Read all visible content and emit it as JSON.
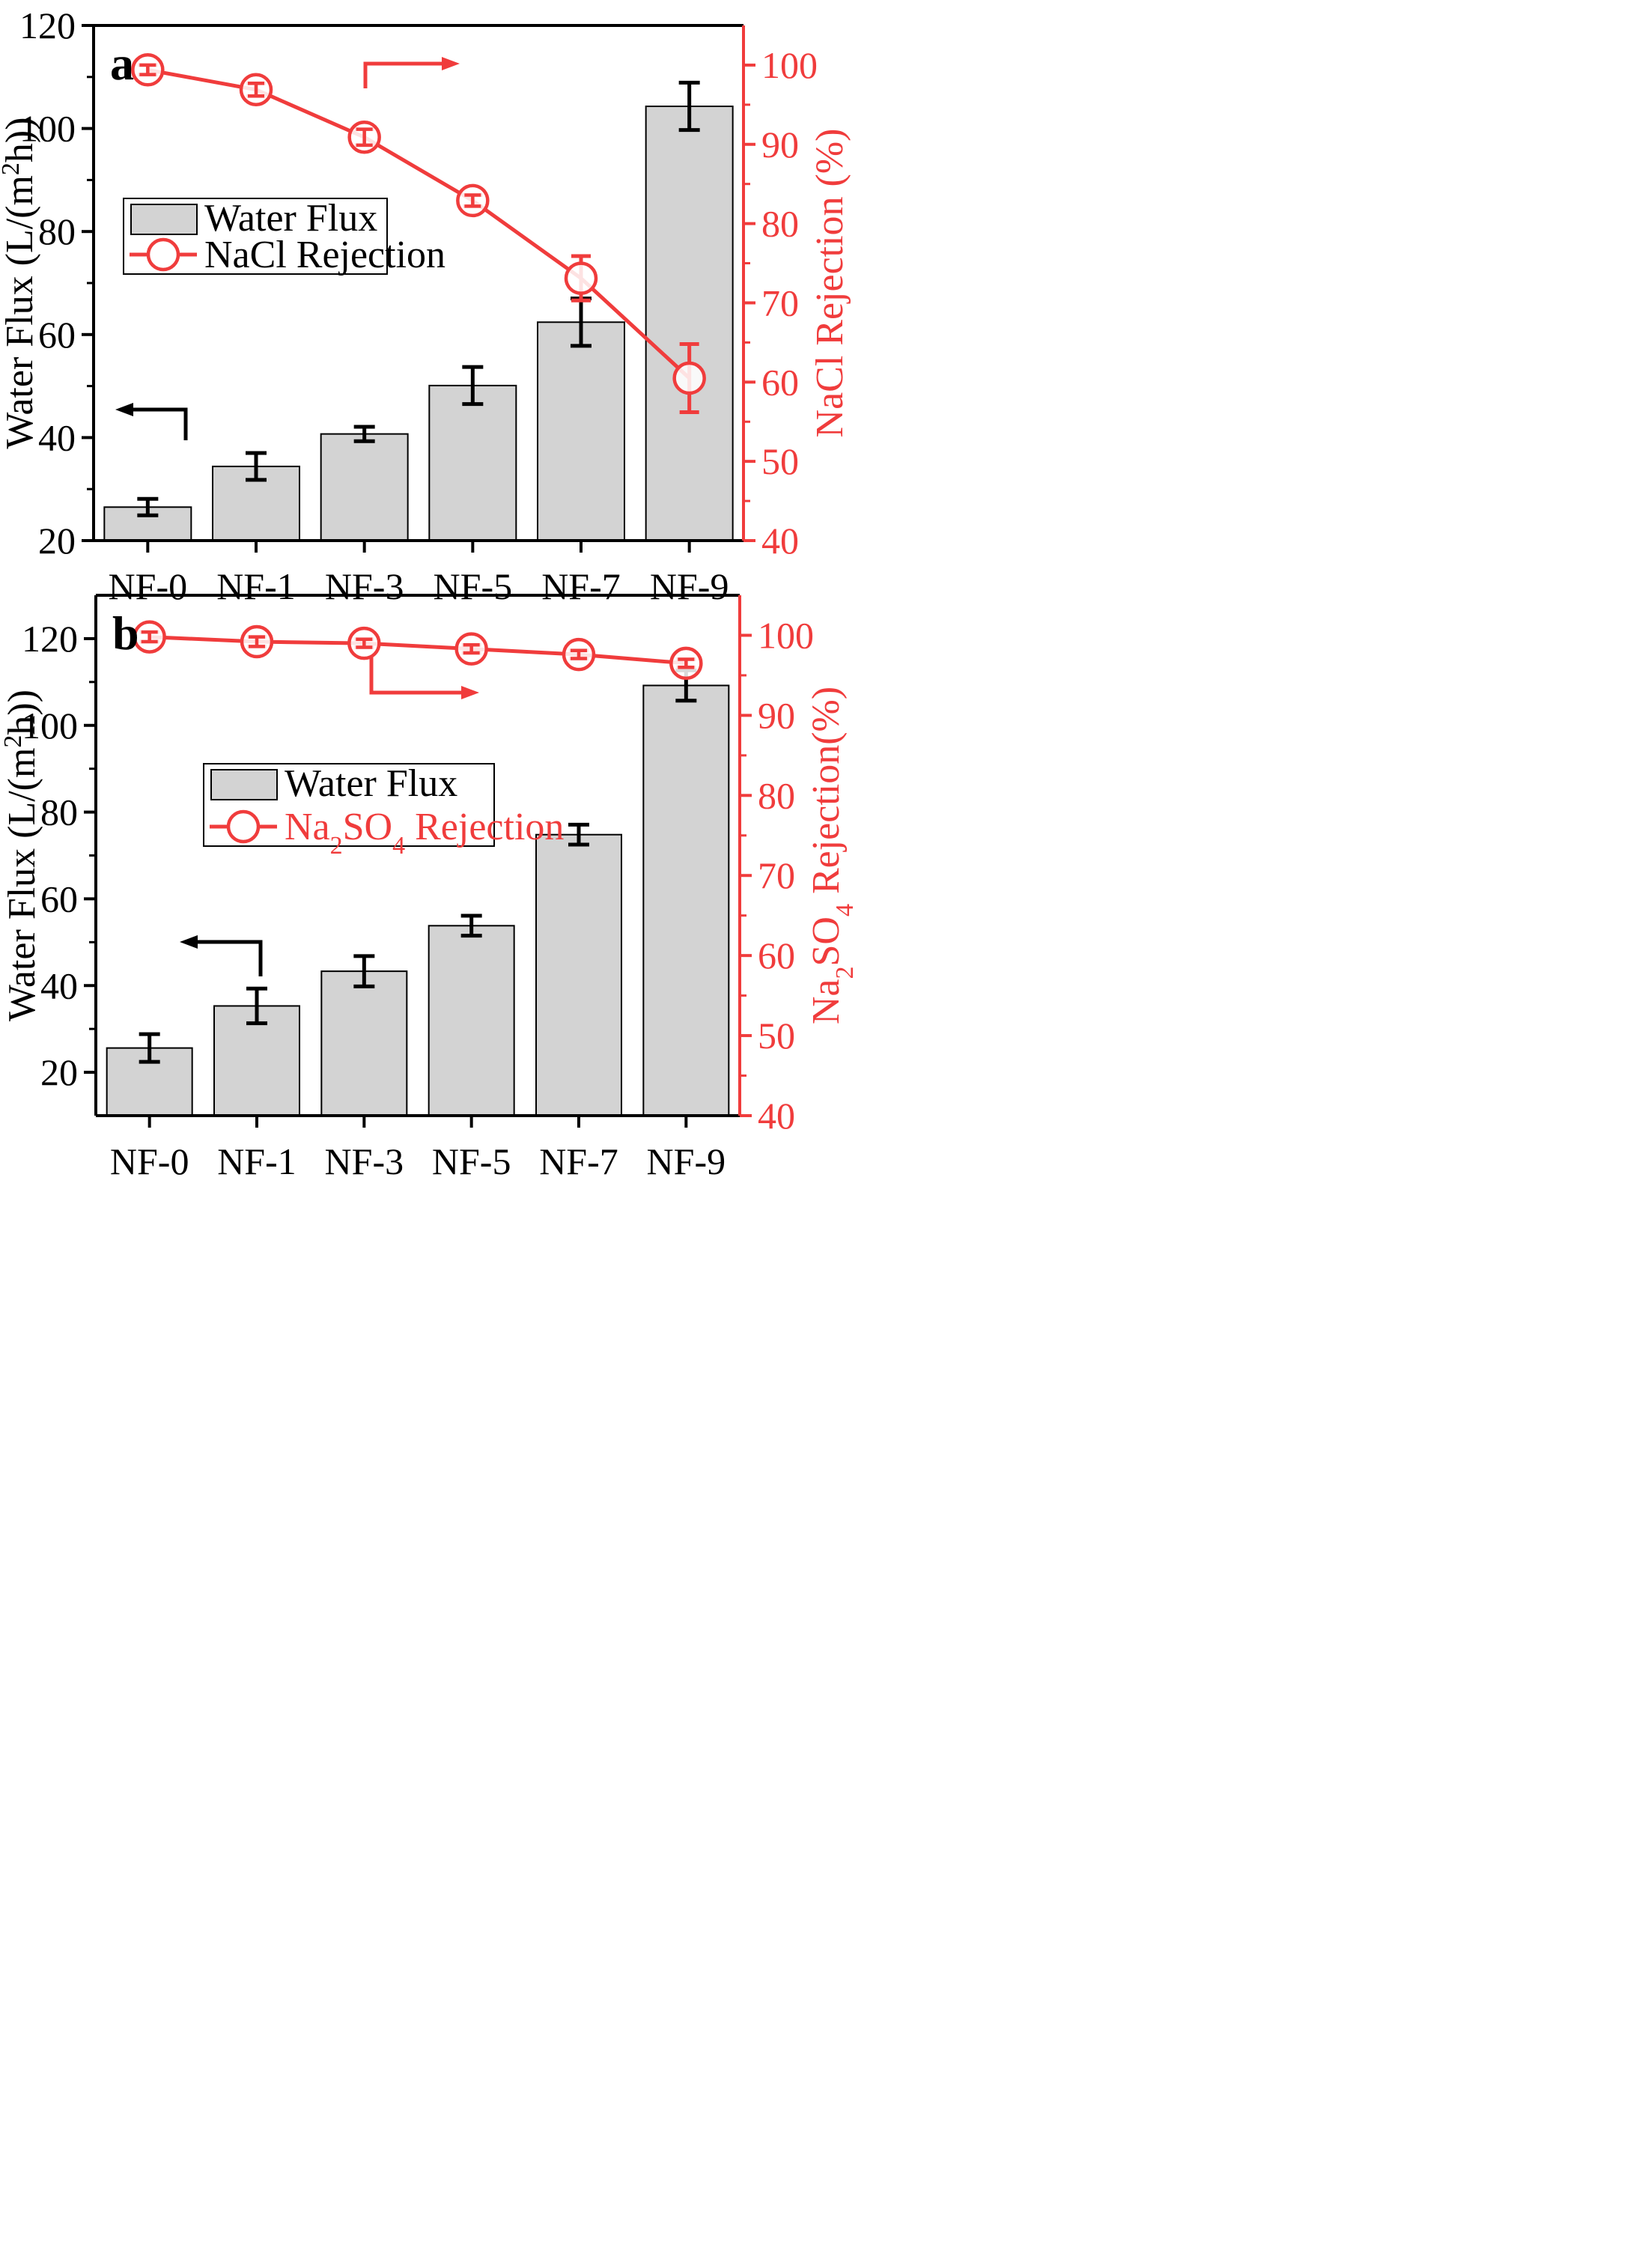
{
  "colors": {
    "bar_fill": "#d3d3d3",
    "bar_stroke": "#000000",
    "left_axis": "#000000",
    "right_axis": "#f03c3c",
    "line": "#f03c3c"
  },
  "chart_data": [
    {
      "type": "bar",
      "panel_label": "a",
      "categories": [
        "NF-0",
        "NF-1",
        "NF-3",
        "NF-5",
        "NF-7",
        "NF-9"
      ],
      "ylabel": "Water Flux (L/(m²h))",
      "ylabel_parts": [
        "Water Flux (L/(m",
        "2",
        "h))"
      ],
      "ylim": [
        20,
        120
      ],
      "yticks": [
        20,
        40,
        60,
        80,
        100,
        120
      ],
      "y2label": "NaCl Rejection (%)",
      "y2label_parts": [
        "NaCl Rejection (%)"
      ],
      "y2lim": [
        40,
        105
      ],
      "y2ticks": [
        40,
        50,
        60,
        70,
        80,
        90,
        100
      ],
      "legend": {
        "position": "upper-left",
        "bar_label": "Water Flux",
        "line_label_parts": [
          "NaCl Rejection"
        ]
      },
      "series": [
        {
          "name": "Water Flux",
          "axis": "left",
          "kind": "bar",
          "values": [
            26.5,
            34.4,
            40.7,
            50.1,
            62.4,
            104.3
          ],
          "errors": [
            1.6,
            2.6,
            1.4,
            3.6,
            4.6,
            4.6
          ]
        },
        {
          "name": "NaCl Rejection",
          "axis": "right",
          "kind": "line",
          "values": [
            99.4,
            96.9,
            90.9,
            82.9,
            73.1,
            60.5
          ],
          "errors": [
            0.6,
            0.8,
            1.0,
            0.7,
            2.8,
            4.3
          ]
        }
      ]
    },
    {
      "type": "bar",
      "panel_label": "b",
      "categories": [
        "NF-0",
        "NF-1",
        "NF-3",
        "NF-5",
        "NF-7",
        "NF-9"
      ],
      "ylabel": "Water Flux (L/(m²h))",
      "ylabel_parts": [
        "Water Flux (L/(m",
        "2",
        "h))"
      ],
      "ylim": [
        10,
        130
      ],
      "yticks": [
        20,
        40,
        60,
        80,
        100,
        120
      ],
      "y2label": "Na₂SO₄ Rejection(%)",
      "y2label_parts": [
        "Na",
        "2",
        "SO",
        "4",
        " Rejection(%)"
      ],
      "y2lim": [
        40,
        105
      ],
      "y2ticks": [
        40,
        50,
        60,
        70,
        80,
        90,
        100
      ],
      "legend": {
        "position": "center-left",
        "bar_label": "Water Flux",
        "line_label_parts": [
          "Na",
          "2",
          "SO",
          "4",
          " Rejection"
        ]
      },
      "series": [
        {
          "name": "Water Flux",
          "axis": "left",
          "kind": "bar",
          "values": [
            25.6,
            35.3,
            43.3,
            53.8,
            74.8,
            109.2
          ],
          "errors": [
            3.2,
            4.0,
            3.5,
            2.3,
            2.3,
            3.5
          ]
        },
        {
          "name": "Na₂SO₄ Rejection",
          "axis": "right",
          "kind": "line",
          "values": [
            99.8,
            99.2,
            99.0,
            98.3,
            97.6,
            96.5
          ],
          "errors": [
            0.6,
            0.6,
            0.5,
            0.5,
            0.5,
            0.5
          ]
        }
      ]
    }
  ]
}
